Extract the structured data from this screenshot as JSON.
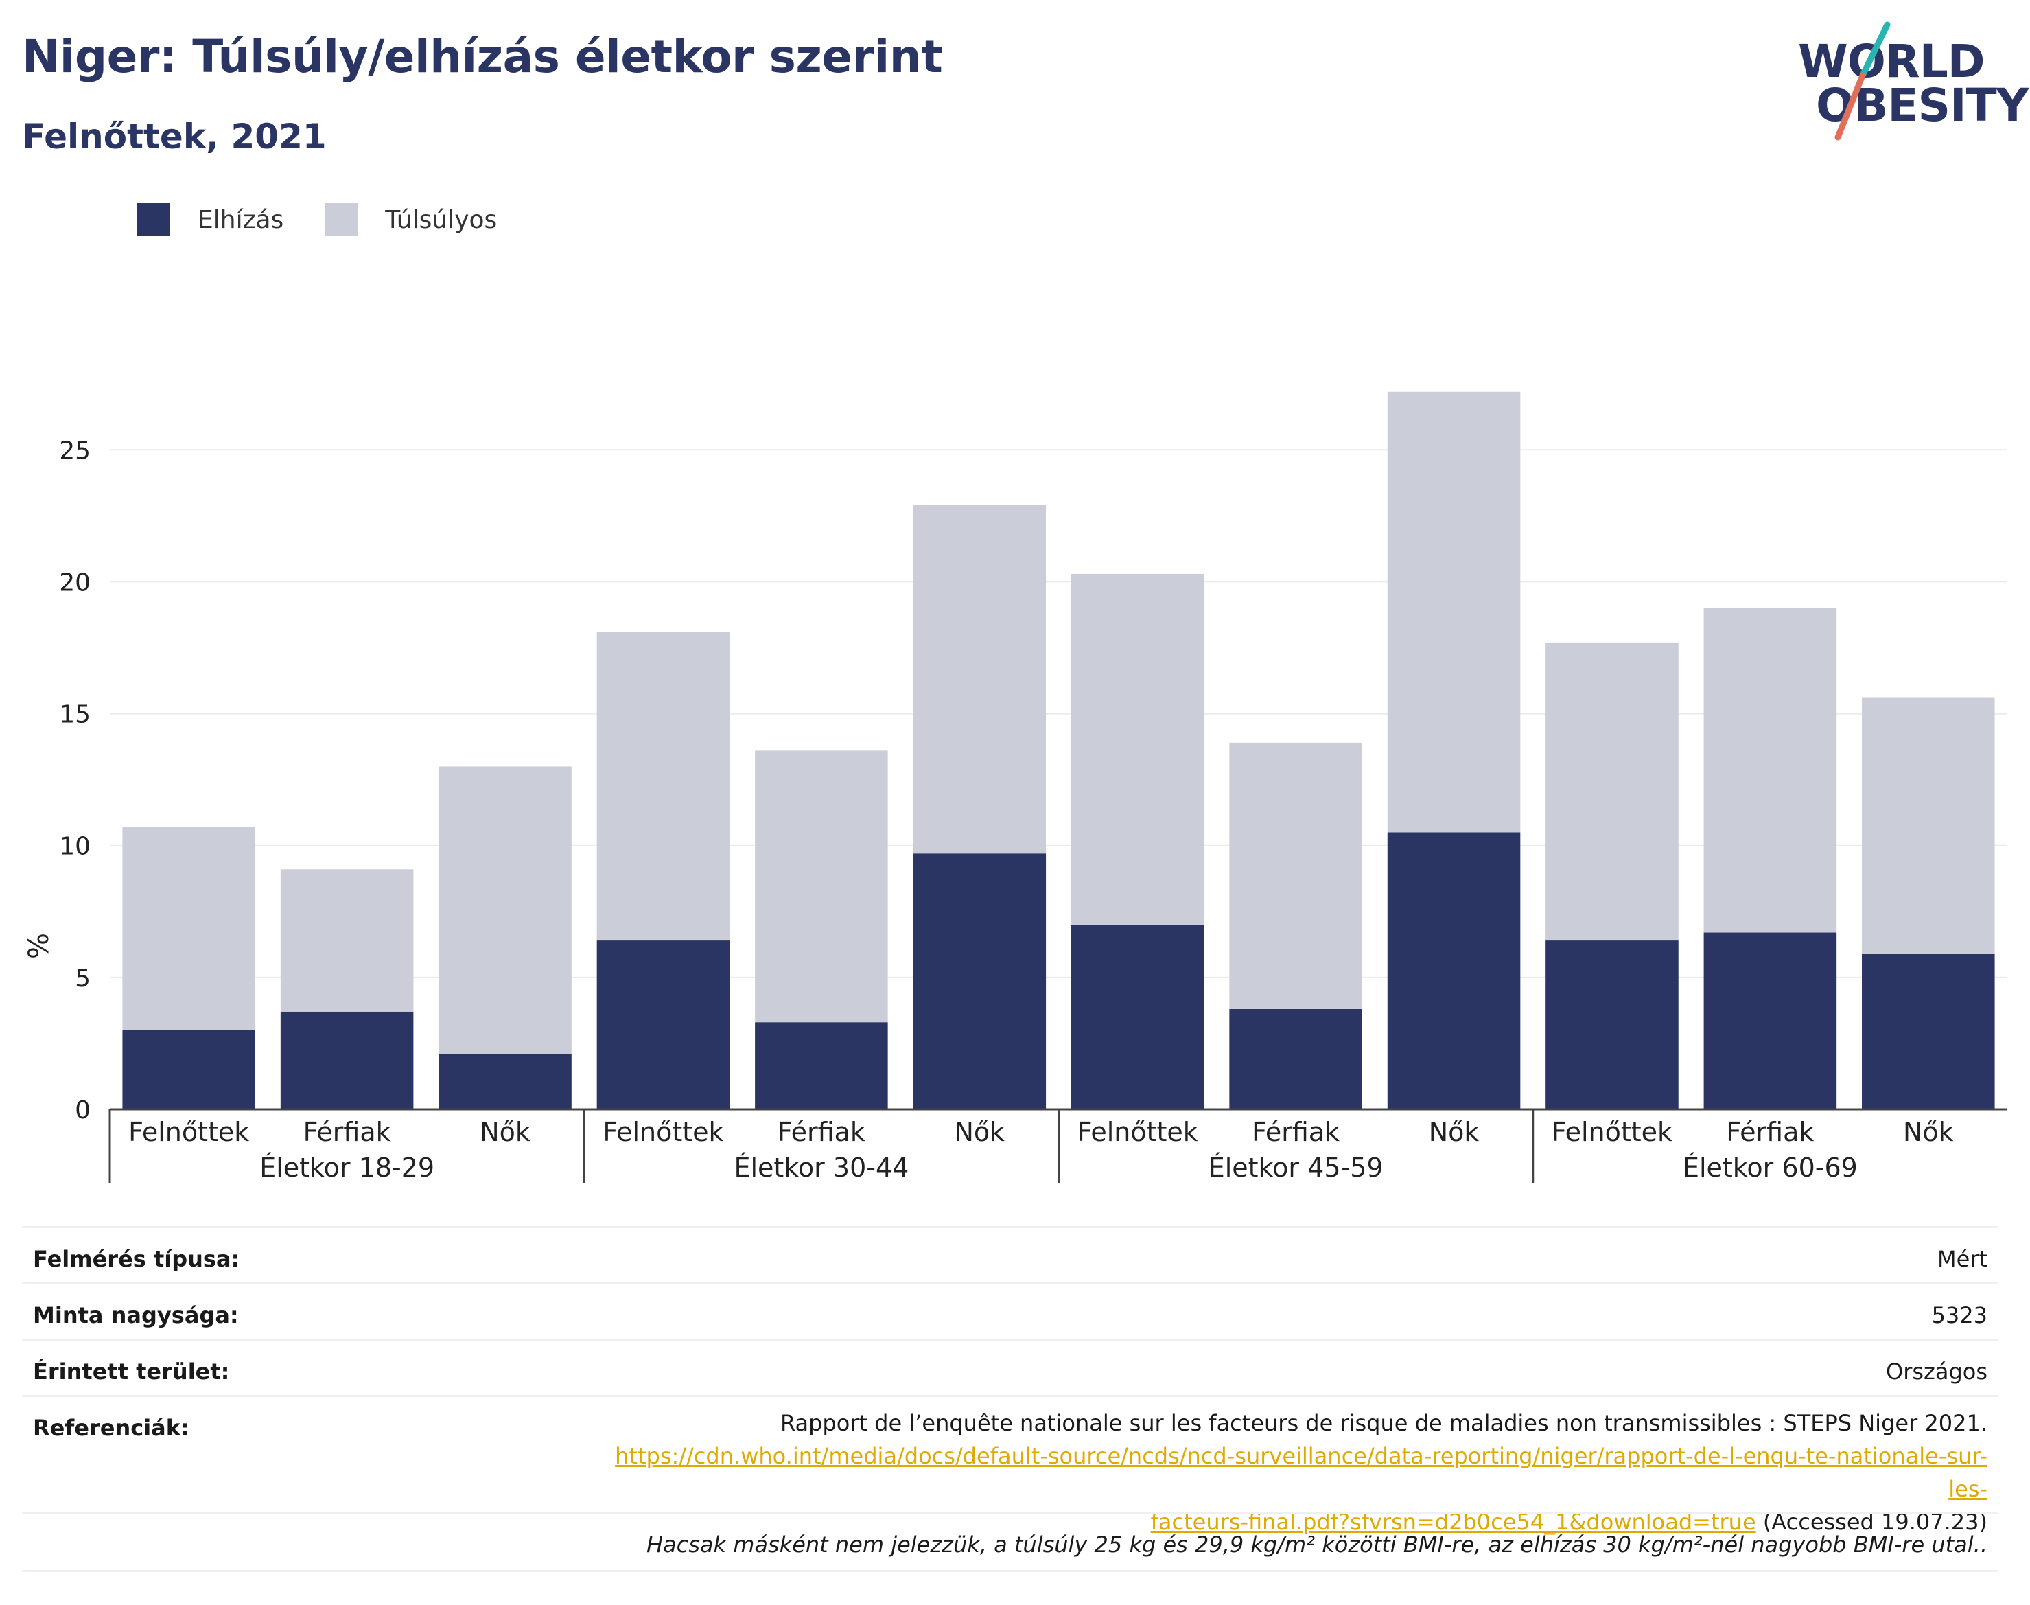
{
  "header": {
    "title": "Niger: Túlsúly/elhízás életkor szerint",
    "subtitle": "Felnőttek, 2021"
  },
  "logo": {
    "line1": "WORLD",
    "line2": "OBESITY"
  },
  "colors": {
    "obesity": "#2a3563",
    "overweight": "#cbcdd8",
    "title": "#2a3563",
    "link": "#e0a800"
  },
  "legend": [
    {
      "label": "Elhízás",
      "color": "#2a3563"
    },
    {
      "label": "Túlsúlyos",
      "color": "#cbcdd8"
    }
  ],
  "chart_data": {
    "type": "bar",
    "stacked": true,
    "ylabel": "%",
    "ylim": [
      0,
      28
    ],
    "yticks": [
      0,
      5,
      10,
      15,
      20,
      25
    ],
    "grid": true,
    "legend_position": "top-left",
    "groups": [
      {
        "label": "Életkor 18-29",
        "categories": [
          "Felnőttek",
          "Férfiak",
          "Nők"
        ]
      },
      {
        "label": "Életkor 30-44",
        "categories": [
          "Felnőttek",
          "Férfiak",
          "Nők"
        ]
      },
      {
        "label": "Életkor 45-59",
        "categories": [
          "Felnőttek",
          "Férfiak",
          "Nők"
        ]
      },
      {
        "label": "Életkor 60-69",
        "categories": [
          "Felnőttek",
          "Férfiak",
          "Nők"
        ]
      }
    ],
    "series": [
      {
        "name": "Elhízás",
        "values": [
          3.0,
          3.7,
          2.1,
          6.4,
          3.3,
          9.7,
          7.0,
          3.8,
          10.5,
          6.4,
          6.7,
          5.9
        ]
      },
      {
        "name": "Túlsúlyos",
        "values": [
          7.7,
          5.4,
          10.9,
          11.7,
          10.3,
          13.2,
          13.3,
          10.1,
          16.7,
          11.3,
          12.3,
          9.7
        ]
      }
    ]
  },
  "meta": {
    "survey_type": {
      "key": "Felmérés típusa:",
      "value": "Mért"
    },
    "sample_size": {
      "key": "Minta nagysága:",
      "value": "5323"
    },
    "area": {
      "key": "Érintett terület:",
      "value": "Országos"
    },
    "references": {
      "key": "Referenciák:",
      "text": "Rapport de l’enquête nationale sur les facteurs de risque de maladies non transmissibles : STEPS Niger 2021.",
      "link_line1": "https://cdn.who.int/media/docs/default-source/ncds/ncd-surveillance/data-reporting/niger/rapport-de-l-enqu-te-nationale-sur-les-",
      "link_line2": "facteurs-final.pdf?sfvrsn=d2b0ce54_1&download=true",
      "accessed": " (Accessed 19.07.23)"
    },
    "footnote": "Hacsak másként nem jelezzük, a túlsúly 25 kg és 29,9 kg/m² közötti BMI-re, az elhízás 30 kg/m²-nél nagyobb BMI-re utal.."
  }
}
